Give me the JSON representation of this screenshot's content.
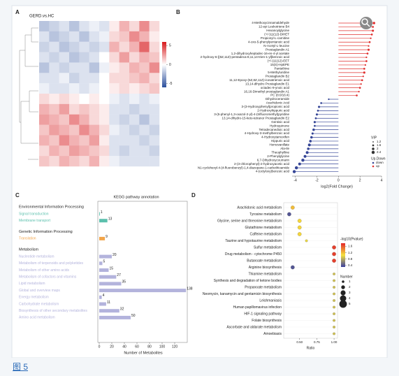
{
  "caption": "图 5",
  "chart_data": [
    {
      "type": "heatmap",
      "panel": "A",
      "title": "GERD.vs.HC",
      "values": [
        [
          -2,
          -1.5,
          -1,
          -2,
          -1,
          -0.5,
          -1,
          0.5,
          2,
          1,
          3,
          1
        ],
        [
          -1,
          -2,
          -1.5,
          -1,
          -2,
          -1,
          -0.5,
          1,
          1.5,
          3,
          2,
          0.5
        ],
        [
          -1.5,
          -1,
          -2,
          -1.5,
          -1,
          -1.5,
          -1,
          2,
          1,
          2,
          4,
          1
        ],
        [
          -1,
          -1.5,
          -1,
          -2,
          -1.5,
          -1,
          0,
          1,
          2.5,
          1,
          2,
          1.5
        ],
        [
          -2,
          -1,
          -1.5,
          -1,
          -1,
          -2,
          -0.5,
          0.5,
          1,
          2,
          1.5,
          3
        ],
        [
          -1,
          -1,
          -0.5,
          -1.5,
          -1,
          -1,
          0,
          1,
          1,
          1.5,
          2,
          1
        ],
        [
          -0.5,
          -1,
          -1,
          -0.5,
          -1,
          -0.5,
          0,
          0.5,
          1,
          0.5,
          1,
          1.5
        ],
        [
          1,
          0.5,
          1,
          0.5,
          0,
          0.5,
          0,
          -0.5,
          -1,
          -0.5,
          -1,
          -0.5
        ],
        [
          2,
          1.5,
          2.5,
          1,
          1.5,
          1,
          0.5,
          -1,
          -1,
          -1.5,
          -1,
          -1
        ],
        [
          2.5,
          2,
          1.5,
          3,
          2,
          1,
          0.5,
          -1,
          -1.5,
          -1,
          -2,
          -1
        ],
        [
          1.5,
          2.5,
          2,
          1.5,
          3,
          2,
          1,
          -0.5,
          -1,
          -1.5,
          -1,
          -1.5
        ],
        [
          2,
          1.5,
          3,
          2,
          1.5,
          2.5,
          0.5,
          -1,
          -1,
          -1,
          -1.5,
          -1
        ],
        [
          1,
          2,
          1.5,
          2.5,
          2,
          1.5,
          1,
          -1,
          -1.5,
          -1,
          -1,
          -1.5
        ],
        [
          1.5,
          1,
          2,
          1.5,
          1,
          2,
          0.5,
          -0.5,
          -1,
          -1,
          -1,
          -1
        ]
      ],
      "clim": [
        -6,
        6
      ],
      "cticks": [
        5,
        0,
        -5
      ],
      "colors": [
        "#2b4f9c",
        "#ffffff",
        "#d7191c"
      ]
    },
    {
      "type": "lollipop",
      "panel": "B",
      "categories": [
        "4-Methoxycinnamaldehyde",
        "12-epi Leukotriene B4",
        "Hexanoylglycine",
        "(+/-)11(12)-DiHET",
        "Propionyl-L-carnitine",
        "4-oxo-5-phenylpentanoic acid",
        "N-Acetyl-L-leucine",
        "Prostaglandin A1",
        "1,2-dihydroxyheptadec-16-en-4-yl acetate",
        "2-hydroxy-6-[(8Z,11Z)-pentadeca-8,11,14-trien-1-yl]benzoic acid",
        "(+/-)11(12)-EET",
        "15(S)-HpEPE",
        "Pantethine",
        "5-Methyluridine",
        "Prostaglandin B2",
        "11,12-Epoxy-(5Z,8Z,11Z)-icosatrienoic acid",
        "13,14-dihydro Prostaglandin E1",
        "octadec-9-ynoic acid",
        "16,16-Dimethyl prostaglandin A1",
        "PC (8:0/16:4)",
        "Dihydroceramide",
        "Arachidonic Acid",
        "3-(3-Hydroxyphenyl)propionic acid",
        "2-Hydroxyhippuric acid",
        "3-(5-phenyl-1,3-oxazol-2-yl)-4-(trifluoromethyl)pyridine",
        "13,14-dihydro-15-keto-tetranor Prostaglandin E2",
        "Gentisic acid",
        "Hydroquinone",
        "Tetradecanedioic acid",
        "4-Hydroxy-3-methylbenzoic acid",
        "4-Hydroxytamoxifen",
        "Hippuric acid",
        "Homovanillate",
        "Ala-Ile",
        "Theophylline",
        "2-Phenylglycine",
        "6,7-Dihydroxycoumarin",
        "2-(3-chlorophenyl)-2-hydroxyacetic acid",
        "N1-cyclohexyl-4-(4-fluorobenzyl)-1,4-diazepane-1-carbothioamide",
        "4-(octyloxy)benzoic acid"
      ],
      "values": [
        3.3,
        3.2,
        3.2,
        3.1,
        3.0,
        2.9,
        2.8,
        2.8,
        2.7,
        2.6,
        2.6,
        2.5,
        2.4,
        2.4,
        2.3,
        2.2,
        2.1,
        2.0,
        1.9,
        1.7,
        -0.9,
        -1.6,
        -1.8,
        -1.9,
        -2.0,
        -2.1,
        -2.2,
        -2.2,
        -2.3,
        -2.4,
        -2.5,
        -2.6,
        -2.7,
        -2.8,
        -2.9,
        -3.1,
        -3.3,
        -3.6,
        -3.9,
        -4.1
      ],
      "vip": [
        2.0,
        1.6,
        1.8,
        1.6,
        1.4,
        1.6,
        1.4,
        1.8,
        1.6,
        1.4,
        1.6,
        1.4,
        1.6,
        1.8,
        1.4,
        1.6,
        1.4,
        1.6,
        1.4,
        1.6,
        1.4,
        1.6,
        1.8,
        1.6,
        1.8,
        1.6,
        1.8,
        1.6,
        2.0,
        1.8,
        2.0,
        2.0,
        2.2,
        2.0,
        2.2,
        2.2,
        2.4,
        2.2,
        2.4,
        2.4
      ],
      "xlim": [
        -4.3,
        4.0
      ],
      "xticks": [
        -4,
        -2,
        0,
        2,
        4
      ],
      "xlabel": "log2(Fold Change)",
      "size_legend": {
        "title": "VIP",
        "values": [
          1.2,
          1.6,
          2.0,
          2.4
        ]
      },
      "color_legend": {
        "title": "Up.Down",
        "entries": [
          {
            "name": "down",
            "color": "#354596"
          },
          {
            "name": "up",
            "color": "#e0302f"
          }
        ]
      }
    },
    {
      "type": "bar",
      "panel": "C",
      "orientation": "horizontal",
      "title": "KEGG pathway annotation",
      "groups": [
        {
          "name": "Environmental Information Processing",
          "color": "#5cc0ad",
          "categories": [
            "Signal transduction",
            "Membrane transport"
          ],
          "values": [
            1,
            13
          ]
        },
        {
          "name": "Genetic Information Processing",
          "color": "#f2a54a",
          "categories": [
            "Translation"
          ],
          "values": [
            9
          ]
        },
        {
          "name": "Metabolism",
          "color": "#b3b3dc",
          "categories": [
            "Nucleotide metabolism",
            "Metabolism of terpenoids and polyketides",
            "Metabolism of other amino acids",
            "Metabolism of cofactors and vitamins",
            "Lipid metabolism",
            "Global and overview maps",
            "Energy metabolism",
            "Carbohydrate metabolism",
            "Biosynthesis of other secondary metabolites",
            "Amino acid metabolism"
          ],
          "values": [
            20,
            5,
            15,
            27,
            35,
            138,
            4,
            11,
            32,
            50
          ]
        }
      ],
      "xlim": [
        0,
        140
      ],
      "xticks": [
        0,
        20,
        40,
        60,
        80,
        100,
        120
      ],
      "xlabel": "Number of Metabolites"
    },
    {
      "type": "bubble",
      "panel": "D",
      "categories": [
        "Arachidonic acid metabolism",
        "Tyrosine metabolism",
        "Glycine, serine and threonine metabolism",
        "Glutathione metabolism",
        "Caffeine metabolism",
        "Taurine and hypotaurine metabolism",
        "Sulfur metabolism",
        "Drug metabolism - cytochrome P450",
        "Butanoate metabolism",
        "Arginine biosynthesis",
        "Thiamine metabolism",
        "Synthesis and degradation of ketone bodies",
        "Propanoate metabolism",
        "Neomycin, kanamycin and gentamicin biosynthesis",
        "Leishmaniasis",
        "Human papillomavirus infection",
        "HIF-1 signaling pathway",
        "Folate biosynthesis",
        "Ascorbate and aldarate metabolism",
        "Amoebiasis"
      ],
      "x": [
        0.4,
        0.35,
        0.5,
        0.5,
        0.5,
        0.6,
        1.0,
        1.0,
        1.0,
        0.4,
        1.0,
        1.0,
        1.0,
        1.0,
        1.0,
        1.0,
        1.0,
        1.0,
        1.0,
        1.0
      ],
      "neg_log10_p": [
        1.2,
        0.4,
        1.1,
        1.1,
        1.1,
        1.0,
        1.7,
        1.7,
        1.7,
        0.4,
        0.9,
        0.9,
        0.9,
        0.9,
        0.9,
        0.9,
        0.9,
        0.9,
        0.9,
        0.9
      ],
      "number": [
        2,
        2,
        2,
        2,
        2,
        1,
        2,
        2,
        2,
        2,
        1,
        1,
        1,
        1,
        1,
        1,
        1,
        1,
        1,
        1
      ],
      "xlim": [
        0.27,
        1.05
      ],
      "xticks": [
        {
          "value": 0.5,
          "label": "0.50"
        },
        {
          "value": 0.75,
          "label": "0.75"
        },
        {
          "value": 1.0,
          "label": "1.00"
        }
      ],
      "xlabel": "Ratio",
      "color_title": "-log10(Pvalue)",
      "clim": [
        0.3,
        1.8
      ],
      "cticks": [
        1.6,
        1.2,
        0.8,
        0.4
      ],
      "colors": [
        "#3a3fa0",
        "#f5e23c",
        "#e3262a"
      ],
      "size_title": "Number",
      "size_values": [
        1,
        2,
        3,
        4,
        5
      ]
    }
  ]
}
